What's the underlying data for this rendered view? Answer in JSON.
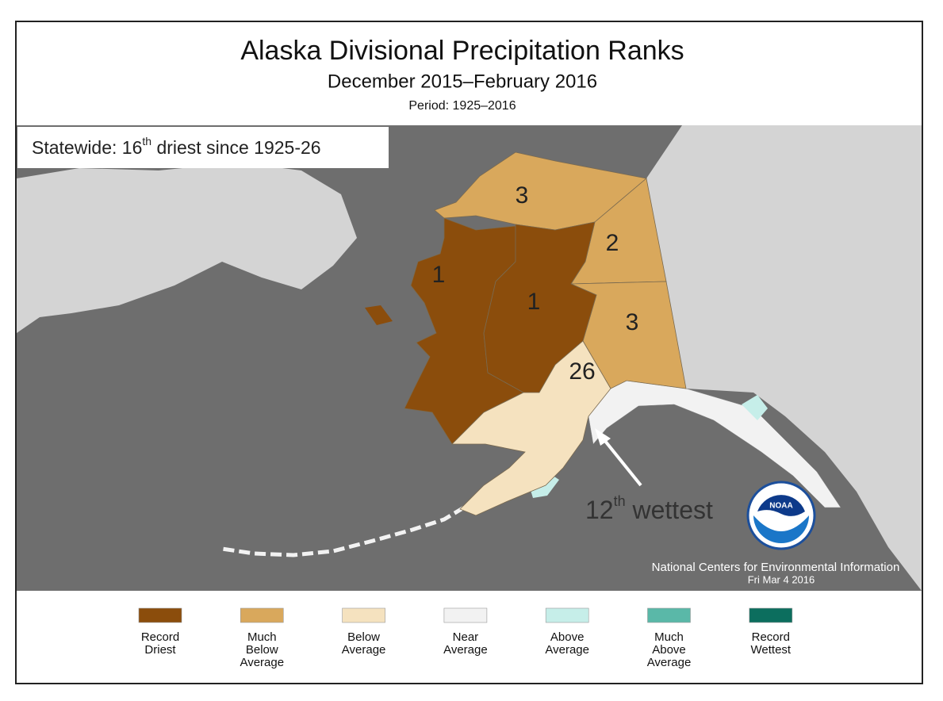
{
  "header": {
    "title": "Alaska Divisional Precipitation Ranks",
    "subtitle": "December 2015–February 2016",
    "period": "Period: 1925–2016"
  },
  "statewide": {
    "parts": [
      "Statewide: 16",
      "th",
      " driest since 1925-26"
    ]
  },
  "regions": [
    {
      "rank": "3",
      "color": "#d9a85c"
    },
    {
      "rank": "2",
      "color": "#d9a85c"
    },
    {
      "rank": "3",
      "color": "#d9a85c"
    },
    {
      "rank": "1",
      "color": "#8b4d0c"
    },
    {
      "rank": "1",
      "color": "#8b4d0c"
    },
    {
      "rank": "26",
      "color": "#f5e2bf"
    }
  ],
  "annotation": {
    "parts": [
      "12",
      "th",
      " wettest"
    ]
  },
  "logo": {
    "text": "NOAA"
  },
  "credit": {
    "line1": "National Centers for Environmental Information",
    "line2": "Fri Mar  4 2016"
  },
  "legend": [
    {
      "lines": [
        "Record",
        "Driest"
      ],
      "color": "#8b4d0c"
    },
    {
      "lines": [
        "Much",
        "Below",
        "Average"
      ],
      "color": "#d9a85c"
    },
    {
      "lines": [
        "Below",
        "Average"
      ],
      "color": "#f5e2bf"
    },
    {
      "lines": [
        "Near",
        "Average"
      ],
      "color": "#f2f2f2"
    },
    {
      "lines": [
        "Above",
        "Average"
      ],
      "color": "#c6eee9"
    },
    {
      "lines": [
        "Much",
        "Above",
        "Average"
      ],
      "color": "#5ab8a8"
    },
    {
      "lines": [
        "Record",
        "Wettest"
      ],
      "color": "#0c6e5e"
    }
  ]
}
